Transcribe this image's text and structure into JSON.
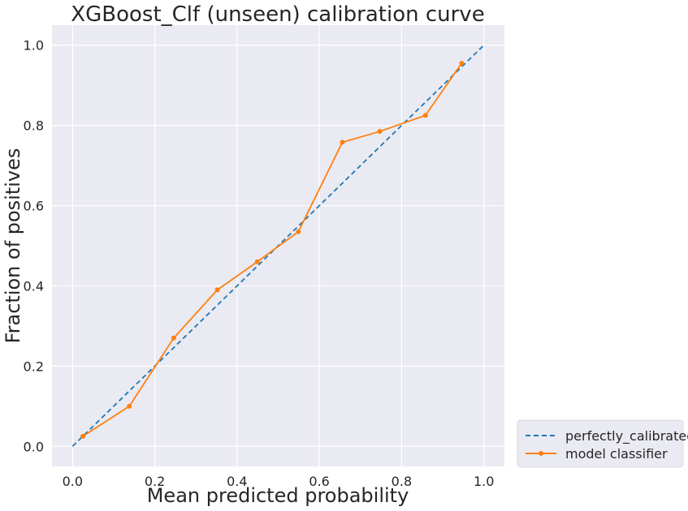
{
  "chart_data": {
    "type": "line",
    "title": "XGBoost_Clf (unseen) calibration curve",
    "xlabel": "Mean predicted probability",
    "ylabel": "Fraction of positives",
    "xlim": [
      -0.05,
      1.05
    ],
    "ylim": [
      -0.05,
      1.05
    ],
    "xticks": [
      "0.0",
      "0.2",
      "0.4",
      "0.6",
      "0.8",
      "1.0"
    ],
    "yticks": [
      "0.0",
      "0.2",
      "0.4",
      "0.6",
      "0.8",
      "1.0"
    ],
    "grid": true,
    "legend_position": "outside-bottom-right",
    "series": [
      {
        "name": "perfectly_calibrated",
        "style": "dashed",
        "color": "#1f77b4",
        "x": [
          0.0,
          1.0
        ],
        "y": [
          0.0,
          1.0
        ]
      },
      {
        "name": "model classifier",
        "style": "solid",
        "marker": "dot",
        "color": "#ff7f0e",
        "x": [
          0.025,
          0.138,
          0.246,
          0.352,
          0.449,
          0.549,
          0.656,
          0.747,
          0.858,
          0.946
        ],
        "y": [
          0.025,
          0.1,
          0.27,
          0.39,
          0.46,
          0.535,
          0.758,
          0.785,
          0.825,
          0.955
        ]
      }
    ]
  },
  "colors": {
    "plot_background": "#eaeaf2",
    "grid": "#ffffff"
  }
}
